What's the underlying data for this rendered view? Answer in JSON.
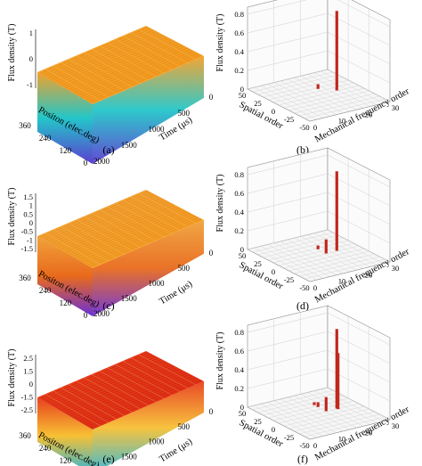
{
  "chart_data": [
    {
      "id": "a",
      "type": "surface",
      "panel_label": "(a)",
      "xlabel": "Positon (elec.deg)",
      "ylabel": "Time (μs)",
      "zlabel": "Flux density (T)",
      "x_ticks": [
        "360",
        "240",
        "120",
        "0"
      ],
      "y_ticks": [
        "2000",
        "1500",
        "1000",
        "500",
        "0"
      ],
      "z_ticks": [
        "1",
        "0",
        "-1"
      ],
      "z_range": [
        -1,
        1
      ],
      "colors": {
        "top": "#f2a12a",
        "mid": "#23c6c9",
        "bottom": "#5b3fd0"
      }
    },
    {
      "id": "b",
      "type": "bar3d",
      "panel_label": "(b)",
      "xlabel": "Spatial order",
      "ylabel": "Mechanical frequency order",
      "zlabel": "Flux density (T)",
      "x_ticks": [
        "50",
        "25",
        "0",
        "-25",
        "-50"
      ],
      "y_ticks": [
        "0",
        "10",
        "20",
        "30"
      ],
      "z_ticks": [
        "0",
        "0.2",
        "0.4",
        "0.6",
        "0.8"
      ],
      "z_range": [
        0,
        0.8
      ],
      "bars": [
        {
          "spatial_order": 1,
          "frequency_order": 1,
          "value": 0.85
        },
        {
          "spatial_order": 14,
          "frequency_order": 0,
          "value": 0.05
        }
      ],
      "bar_color": "#c0281f"
    },
    {
      "id": "c",
      "type": "surface",
      "panel_label": "(c)",
      "xlabel": "Positon (elec.deg)",
      "ylabel": "Time (μs)",
      "zlabel": "Flux density (T)",
      "x_ticks": [
        "360",
        "240",
        "120",
        "0"
      ],
      "y_ticks": [
        "2000",
        "1500",
        "1000",
        "500",
        "0"
      ],
      "z_ticks": [
        "1.5",
        "1",
        "0.5",
        "0",
        "-0.5",
        "-1",
        "-1.5"
      ],
      "z_range": [
        -1.5,
        1.5
      ],
      "colors": {
        "top": "#f0a23a",
        "mid": "#e86a1c",
        "bottom": "#6b2fd6"
      }
    },
    {
      "id": "d",
      "type": "bar3d",
      "panel_label": "(d)",
      "xlabel": "Spatial order",
      "ylabel": "Mechanical frequency order",
      "zlabel": "Flux density (T)",
      "x_ticks": [
        "50",
        "25",
        "0",
        "-25",
        "-50"
      ],
      "y_ticks": [
        "0",
        "10",
        "20",
        "30"
      ],
      "z_ticks": [
        "0",
        "0.2",
        "0.4",
        "0.6",
        "0.8"
      ],
      "z_range": [
        0,
        0.8
      ],
      "bars": [
        {
          "spatial_order": 1,
          "frequency_order": 1,
          "value": 0.85
        },
        {
          "spatial_order": 1,
          "frequency_order": 0,
          "value": 0.15
        },
        {
          "spatial_order": 14,
          "frequency_order": 0,
          "value": 0.04
        }
      ],
      "bar_color": "#c0281f"
    },
    {
      "id": "e",
      "type": "surface",
      "panel_label": "(e)",
      "xlabel": "Positon (elec.deg)",
      "ylabel": "Time (μs)",
      "zlabel": "Flux density (T)",
      "x_ticks": [
        "360",
        "240",
        "120",
        "0"
      ],
      "y_ticks": [
        "2000",
        "1500",
        "1000",
        "500",
        "0"
      ],
      "z_ticks": [
        "2.5",
        "1.5",
        "0",
        "-1.5",
        "-2.5"
      ],
      "z_range": [
        -2.5,
        2.5
      ],
      "colors": {
        "top": "#e8401c",
        "mid": "#f7c034",
        "bottom": "#2fb6d6"
      }
    },
    {
      "id": "f",
      "type": "bar3d",
      "panel_label": "(f)",
      "xlabel": "Spatial order",
      "ylabel": "Mechanical frequency order",
      "zlabel": "Flux density (T)",
      "x_ticks": [
        "50",
        "25",
        "0",
        "-25",
        "-50"
      ],
      "y_ticks": [
        "0",
        "10",
        "20",
        "30"
      ],
      "z_ticks": [
        "0",
        "0.2",
        "0.4",
        "0.6",
        "0.8"
      ],
      "z_range": [
        0,
        0.8
      ],
      "bars": [
        {
          "spatial_order": 1,
          "frequency_order": 1,
          "value": 0.85
        },
        {
          "spatial_order": -1,
          "frequency_order": 1,
          "value": 0.6
        },
        {
          "spatial_order": 1,
          "frequency_order": 0,
          "value": 0.15
        },
        {
          "spatial_order": 14,
          "frequency_order": 0,
          "value": 0.05
        },
        {
          "spatial_order": 20,
          "frequency_order": 0,
          "value": 0.03
        }
      ],
      "bar_color": "#c0281f"
    }
  ]
}
